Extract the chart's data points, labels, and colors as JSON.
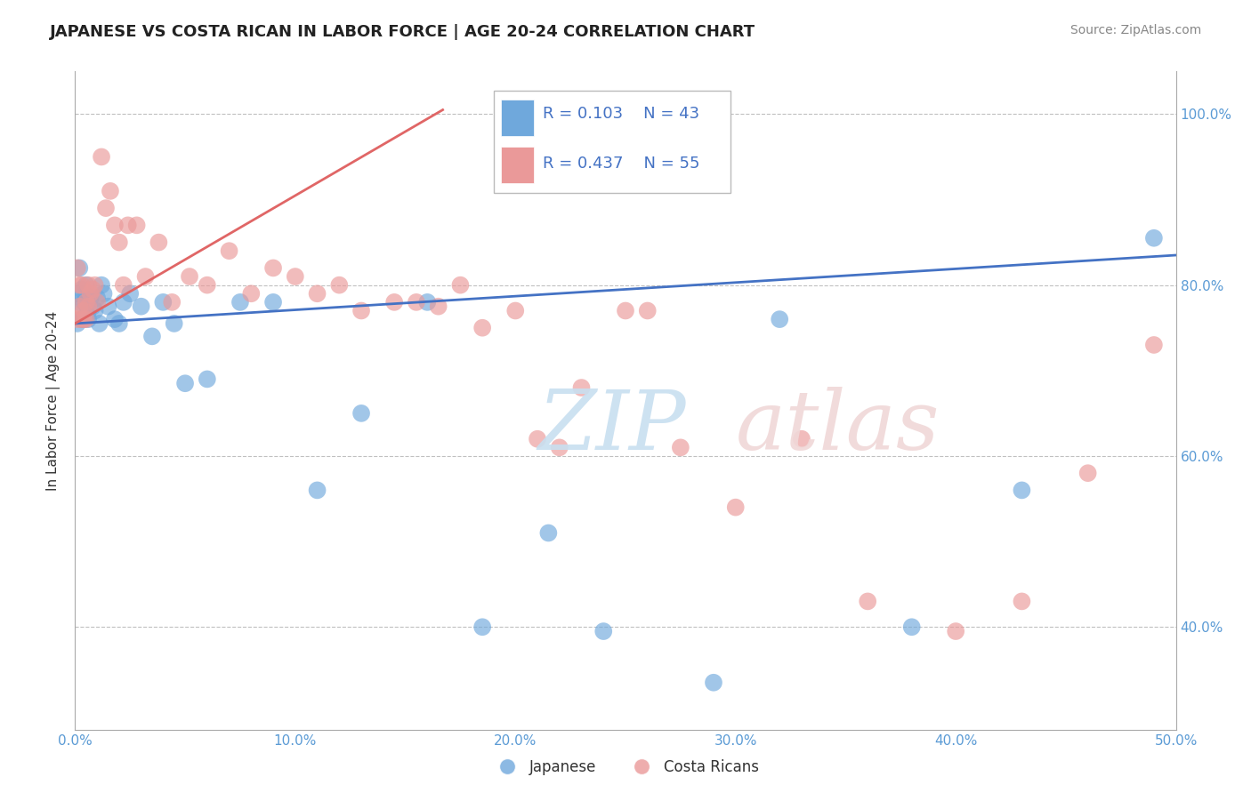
{
  "title": "JAPANESE VS COSTA RICAN IN LABOR FORCE | AGE 20-24 CORRELATION CHART",
  "source": "Source: ZipAtlas.com",
  "ylabel": "In Labor Force | Age 20-24",
  "xlim": [
    0.0,
    0.5
  ],
  "ylim": [
    0.28,
    1.05
  ],
  "xtick_labels": [
    "0.0%",
    "10.0%",
    "20.0%",
    "30.0%",
    "40.0%",
    "50.0%"
  ],
  "xtick_vals": [
    0.0,
    0.1,
    0.2,
    0.3,
    0.4,
    0.5
  ],
  "ytick_labels": [
    "40.0%",
    "60.0%",
    "80.0%",
    "100.0%"
  ],
  "ytick_vals": [
    0.4,
    0.6,
    0.8,
    1.0
  ],
  "legend_R_japanese": "R = 0.103",
  "legend_N_japanese": "N = 43",
  "legend_R_costa": "R = 0.437",
  "legend_N_costa": "N = 55",
  "japanese_color": "#6fa8dc",
  "costa_color": "#ea9999",
  "japanese_line_color": "#4472c4",
  "costa_line_color": "#e06666",
  "background_color": "#ffffff",
  "grid_color": "#c0c0c0",
  "title_fontsize": 13,
  "japanese_x": [
    0.001,
    0.001,
    0.002,
    0.002,
    0.003,
    0.003,
    0.004,
    0.004,
    0.005,
    0.005,
    0.006,
    0.006,
    0.007,
    0.008,
    0.009,
    0.01,
    0.011,
    0.012,
    0.013,
    0.015,
    0.018,
    0.02,
    0.022,
    0.025,
    0.03,
    0.035,
    0.04,
    0.045,
    0.05,
    0.06,
    0.075,
    0.09,
    0.11,
    0.13,
    0.16,
    0.185,
    0.215,
    0.24,
    0.29,
    0.32,
    0.38,
    0.43,
    0.49
  ],
  "japanese_y": [
    0.755,
    0.79,
    0.78,
    0.82,
    0.76,
    0.795,
    0.78,
    0.76,
    0.79,
    0.8,
    0.77,
    0.76,
    0.785,
    0.775,
    0.77,
    0.785,
    0.755,
    0.8,
    0.79,
    0.775,
    0.76,
    0.755,
    0.78,
    0.79,
    0.775,
    0.74,
    0.78,
    0.755,
    0.685,
    0.69,
    0.78,
    0.78,
    0.56,
    0.65,
    0.78,
    0.4,
    0.51,
    0.395,
    0.335,
    0.76,
    0.4,
    0.56,
    0.855
  ],
  "costa_x": [
    0.001,
    0.001,
    0.002,
    0.002,
    0.003,
    0.003,
    0.004,
    0.004,
    0.005,
    0.005,
    0.006,
    0.006,
    0.007,
    0.008,
    0.009,
    0.01,
    0.012,
    0.014,
    0.016,
    0.018,
    0.02,
    0.022,
    0.024,
    0.028,
    0.032,
    0.038,
    0.044,
    0.052,
    0.06,
    0.07,
    0.08,
    0.09,
    0.1,
    0.11,
    0.12,
    0.13,
    0.145,
    0.155,
    0.165,
    0.175,
    0.185,
    0.2,
    0.21,
    0.22,
    0.23,
    0.25,
    0.26,
    0.275,
    0.3,
    0.33,
    0.36,
    0.4,
    0.43,
    0.46,
    0.49
  ],
  "costa_y": [
    0.76,
    0.82,
    0.775,
    0.8,
    0.76,
    0.8,
    0.76,
    0.77,
    0.78,
    0.76,
    0.8,
    0.775,
    0.79,
    0.795,
    0.8,
    0.78,
    0.95,
    0.89,
    0.91,
    0.87,
    0.85,
    0.8,
    0.87,
    0.87,
    0.81,
    0.85,
    0.78,
    0.81,
    0.8,
    0.84,
    0.79,
    0.82,
    0.81,
    0.79,
    0.8,
    0.77,
    0.78,
    0.78,
    0.775,
    0.8,
    0.75,
    0.77,
    0.62,
    0.61,
    0.68,
    0.77,
    0.77,
    0.61,
    0.54,
    0.62,
    0.43,
    0.395,
    0.43,
    0.58,
    0.73
  ],
  "jp_line_x": [
    0.0,
    0.5
  ],
  "jp_line_y": [
    0.755,
    0.835
  ],
  "cr_line_x": [
    0.0,
    0.167
  ],
  "cr_line_y": [
    0.755,
    1.005
  ]
}
